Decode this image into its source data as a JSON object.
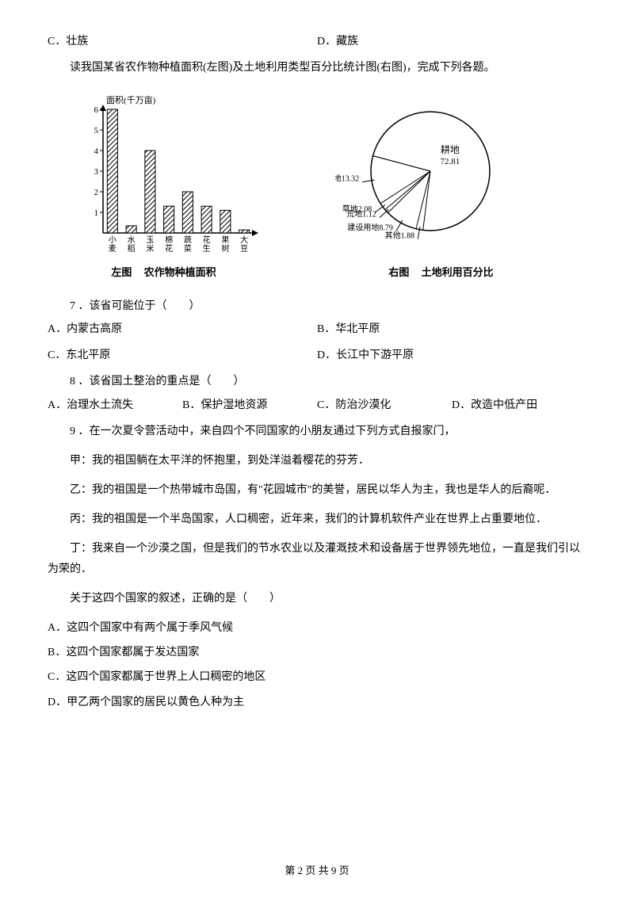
{
  "topOptions": {
    "c": "C．壮族",
    "d": "D．藏族"
  },
  "chartIntro": "读我国某省农作物种植面积(左图)及土地利用类型百分比统计图(右图)，完成下列各题。",
  "barChart": {
    "axisTitle": "面积(千万亩)",
    "yMax": 6,
    "yTicks": [
      1,
      2,
      3,
      4,
      5,
      6
    ],
    "categories": [
      "小麦",
      "水稻",
      "玉米",
      "棉花",
      "蔬菜",
      "花生",
      "果树",
      "大豆"
    ],
    "values": [
      6.0,
      0.35,
      4.0,
      1.3,
      2.0,
      1.3,
      1.1,
      0.15
    ],
    "barColor": "#ffffff",
    "hatchColor": "#000000",
    "axisColor": "#000000",
    "titleLeft": "左图",
    "titleRight": "农作物种植面积"
  },
  "pieChart": {
    "slices": [
      {
        "label": "耕地",
        "value": 72.81,
        "showInside": true
      },
      {
        "label": "其他",
        "value": 1.88
      },
      {
        "label": "建设用地",
        "value": 8.79
      },
      {
        "label": "荒地",
        "value": 1.12
      },
      {
        "label": "草地",
        "value": 2.08
      },
      {
        "label": "林地",
        "value": 13.32
      }
    ],
    "strokeColor": "#000000",
    "fillColor": "#ffffff",
    "titleLeft": "右图",
    "titleRight": "土地利用百分比"
  },
  "q7": {
    "stem": "7 ．该省可能位于（　　）",
    "a": "A．内蒙古高原",
    "b": "B．华北平原",
    "c": "C．东北平原",
    "d": "D．长江中下游平原"
  },
  "q8": {
    "stem": "8 ．该省国土整治的重点是（　　）",
    "a": "A．治理水土流失",
    "b": "B．保护湿地资源",
    "c": "C．防治沙漠化",
    "d": "D．改造中低产田"
  },
  "q9": {
    "stem": "9 ．在一次夏令营活动中，来自四个不同国家的小朋友通过下列方式自报家门，",
    "jia": "甲：我的祖国躺在太平洋的怀抱里，到处洋溢着樱花的芬芳．",
    "yi": "乙：我的祖国是一个热带城市岛国，有\"花园城市\"的美誉，居民以华人为主，我也是华人的后裔呢．",
    "bing": "丙：我的祖国是一个半岛国家，人口稠密，近年来，我们的计算机软件产业在世界上占重要地位．",
    "ding": "丁：我来自一个沙漠之国，但是我们的节水农业以及灌溉技术和设备居于世界领先地位，一直是我们引以为荣的．",
    "ask": "关于这四个国家的叙述，正确的是（　　）",
    "a": "A．这四个国家中有两个属于季风气候",
    "b": "B．这四个国家都属于发达国家",
    "c": "C．这四个国家都属于世界上人口稠密的地区",
    "d": "D．甲乙两个国家的居民以黄色人种为主"
  },
  "footer": "第 2 页 共 9 页"
}
